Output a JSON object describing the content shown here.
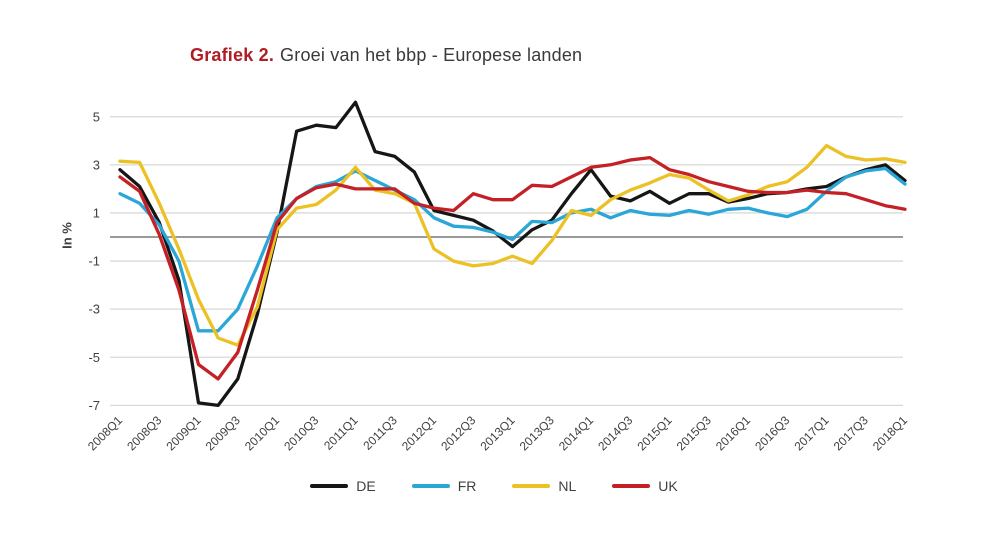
{
  "title": {
    "prefix": "Grafiek 2.",
    "rest": "Groei van het bbp - Europese landen"
  },
  "colors": {
    "DE": "#161616",
    "FR": "#2aa7d7",
    "NL": "#ecc124",
    "UK": "#c42127",
    "grid": "#d9d9d9",
    "zero_line": "#8c8c8c",
    "title_accent": "#b01e24",
    "axis_text": "#3f3f3f"
  },
  "chart_data": {
    "type": "line",
    "title": "Grafiek 2. Groei van het bbp - Europese landen",
    "xlabel": "",
    "ylabel": "In %",
    "ylim": [
      -7.5,
      6
    ],
    "ytick_values": [
      5,
      3,
      1,
      -1,
      -3,
      -5,
      -7
    ],
    "grid": "horizontal, zero line emphasized",
    "legend_position": "bottom-center",
    "x_tick_every": 2,
    "x": [
      "2008Q1",
      "2008Q2",
      "2008Q3",
      "2008Q4",
      "2009Q1",
      "2009Q2",
      "2009Q3",
      "2009Q4",
      "2010Q1",
      "2010Q2",
      "2010Q3",
      "2010Q4",
      "2011Q1",
      "2011Q2",
      "2011Q3",
      "2011Q4",
      "2012Q1",
      "2012Q2",
      "2012Q3",
      "2012Q4",
      "2013Q1",
      "2013Q2",
      "2013Q3",
      "2013Q4",
      "2014Q1",
      "2014Q2",
      "2014Q3",
      "2014Q4",
      "2015Q1",
      "2015Q2",
      "2015Q3",
      "2015Q4",
      "2016Q1",
      "2016Q2",
      "2016Q3",
      "2016Q4",
      "2017Q1",
      "2017Q2",
      "2017Q3",
      "2017Q4",
      "2018Q1"
    ],
    "x_tick_labels": [
      "2008Q1",
      "2008Q3",
      "2009Q1",
      "2009Q3",
      "2010Q1",
      "2010Q3",
      "2011Q1",
      "2011Q3",
      "2012Q1",
      "2012Q3",
      "2013Q1",
      "2013Q3",
      "2014Q1",
      "2014Q3",
      "2015Q1",
      "2015Q3",
      "2016Q1",
      "2016Q3",
      "2017Q1",
      "2017Q3",
      "2018Q1"
    ],
    "series": [
      {
        "name": "DE",
        "values": [
          2.8,
          2.1,
          0.6,
          -1.8,
          -6.9,
          -7.0,
          -5.9,
          -3.2,
          0.2,
          4.4,
          4.65,
          4.55,
          5.6,
          3.55,
          3.35,
          2.7,
          1.1,
          0.9,
          0.7,
          0.25,
          -0.4,
          0.3,
          0.7,
          1.8,
          2.8,
          1.7,
          1.5,
          1.9,
          1.4,
          1.8,
          1.8,
          1.45,
          1.6,
          1.8,
          1.85,
          2.0,
          2.1,
          2.5,
          2.8,
          3.0,
          2.35
        ]
      },
      {
        "name": "FR",
        "values": [
          1.8,
          1.4,
          0.5,
          -1.0,
          -3.9,
          -3.9,
          -3.0,
          -1.2,
          0.8,
          1.6,
          2.1,
          2.3,
          2.75,
          2.35,
          1.95,
          1.55,
          0.8,
          0.45,
          0.4,
          0.2,
          -0.1,
          0.65,
          0.6,
          1.0,
          1.15,
          0.8,
          1.1,
          0.95,
          0.9,
          1.1,
          0.95,
          1.15,
          1.2,
          1.0,
          0.85,
          1.15,
          1.9,
          2.5,
          2.75,
          2.85,
          2.2
        ]
      },
      {
        "name": "NL",
        "values": [
          3.15,
          3.1,
          1.4,
          -0.5,
          -2.6,
          -4.2,
          -4.5,
          -2.9,
          0.3,
          1.2,
          1.35,
          1.95,
          2.9,
          1.95,
          1.8,
          1.4,
          -0.5,
          -1.0,
          -1.2,
          -1.1,
          -0.8,
          -1.1,
          -0.15,
          1.1,
          0.9,
          1.55,
          1.95,
          2.25,
          2.6,
          2.45,
          1.95,
          1.5,
          1.75,
          2.1,
          2.3,
          2.9,
          3.8,
          3.35,
          3.2,
          3.25,
          3.1
        ]
      },
      {
        "name": "UK",
        "values": [
          2.5,
          1.9,
          0.1,
          -2.2,
          -5.3,
          -5.9,
          -4.8,
          -2.2,
          0.6,
          1.6,
          2.05,
          2.2,
          2.0,
          2.0,
          2.0,
          1.4,
          1.2,
          1.1,
          1.8,
          1.55,
          1.55,
          2.15,
          2.1,
          2.5,
          2.9,
          3.0,
          3.2,
          3.3,
          2.8,
          2.6,
          2.3,
          2.1,
          1.9,
          1.85,
          1.85,
          1.95,
          1.85,
          1.8,
          1.55,
          1.3,
          1.15
        ]
      }
    ]
  },
  "legend": {
    "items": [
      {
        "label": "DE"
      },
      {
        "label": "FR"
      },
      {
        "label": "NL"
      },
      {
        "label": "UK"
      }
    ]
  }
}
